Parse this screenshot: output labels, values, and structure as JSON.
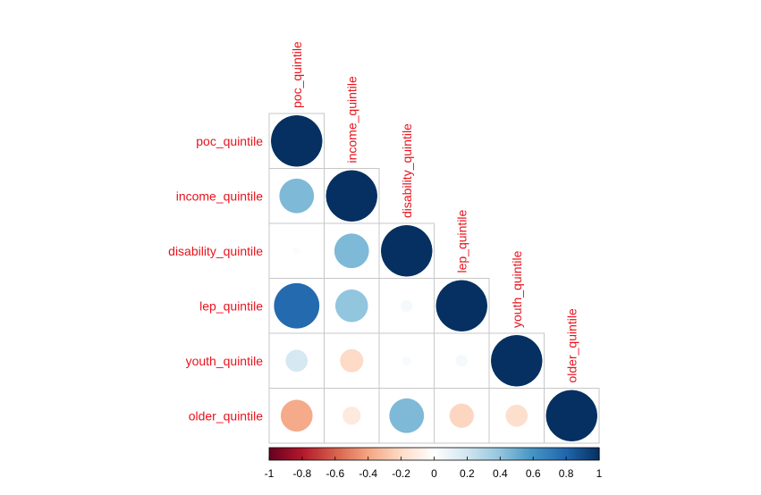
{
  "chart_data": {
    "type": "heatmap",
    "subtype": "correlation-circle-lower-triangle",
    "variables": [
      "poc_quintile",
      "income_quintile",
      "disability_quintile",
      "lep_quintile",
      "youth_quintile",
      "older_quintile"
    ],
    "matrix": [
      [
        1.0,
        0.45,
        0.02,
        0.78,
        0.18,
        -0.38
      ],
      [
        0.45,
        1.0,
        0.45,
        0.4,
        -0.2,
        -0.12
      ],
      [
        0.02,
        0.45,
        1.0,
        0.05,
        0.03,
        0.45
      ],
      [
        0.78,
        0.4,
        0.05,
        1.0,
        0.05,
        -0.22
      ],
      [
        0.18,
        -0.2,
        0.03,
        0.05,
        1.0,
        -0.18
      ],
      [
        -0.38,
        -0.12,
        0.45,
        -0.22,
        -0.18,
        1.0
      ]
    ],
    "color_scale": {
      "min": -1,
      "max": 1,
      "ticks": [
        "-1",
        "-0.8",
        "-0.6",
        "-0.4",
        "-0.2",
        "0",
        "0.2",
        "0.4",
        "0.6",
        "0.8",
        "1"
      ],
      "colors": [
        "#67001F",
        "#B2182B",
        "#D6604D",
        "#F4A582",
        "#FDDBC7",
        "#FFFFFF",
        "#D1E5F0",
        "#92C5DE",
        "#4393C3",
        "#2166AC",
        "#053061"
      ]
    },
    "label_color": "#e8131c",
    "grid": true,
    "legend": "bottom"
  }
}
